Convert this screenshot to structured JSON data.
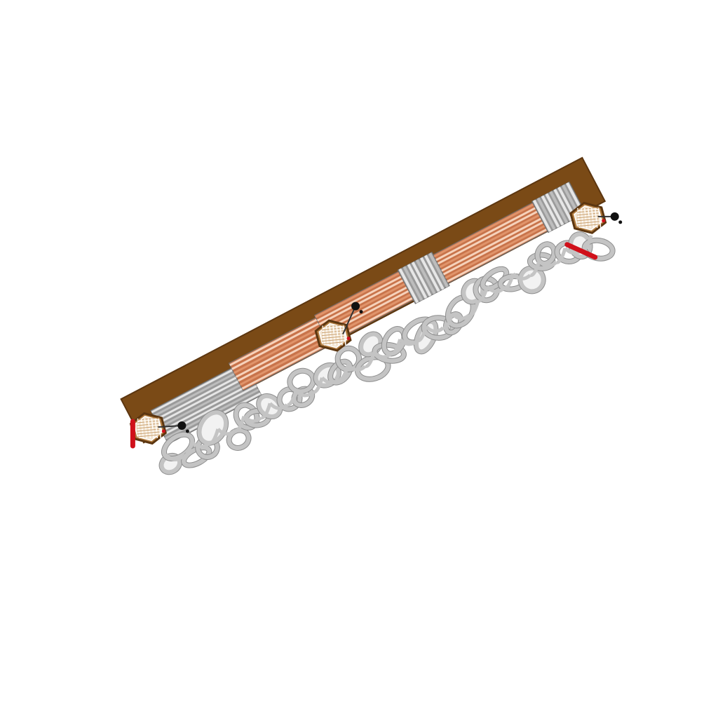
{
  "illustration": {
    "subject": "isometric-rail-bar",
    "segments": [
      {
        "name": "left-chrome-shell",
        "kind": "chrome-ribbed"
      },
      {
        "name": "left-copper-tube",
        "kind": "copper-ribbed"
      },
      {
        "name": "center-copper-tube",
        "kind": "copper-ribbed"
      },
      {
        "name": "center-chrome-collar",
        "kind": "chrome-ribbed"
      },
      {
        "name": "right-copper-tube",
        "kind": "copper-ribbed"
      },
      {
        "name": "right-chrome-collar",
        "kind": "chrome-ribbed"
      }
    ],
    "end_caps": [
      {
        "name": "left-end-cap"
      },
      {
        "name": "middle-junction-cap"
      },
      {
        "name": "right-end-cap"
      }
    ],
    "loop_count": 34,
    "colors": {
      "background": "#ffffff",
      "chrome_dark": "#9a9a9a",
      "chrome_mid": "#bdbdbd",
      "chrome_light": "#e6e6e6",
      "copper_dark": "#c8734a",
      "copper_mid": "#e0946b",
      "copper_light": "#f6d2bb",
      "bronze": "#7a4a16",
      "bronze_dark": "#5c3610",
      "red_accent": "#d0101a",
      "black_knob": "#111111",
      "loop_stroke": "#c4c4c4",
      "loop_outline": "#8e8e8e"
    }
  }
}
